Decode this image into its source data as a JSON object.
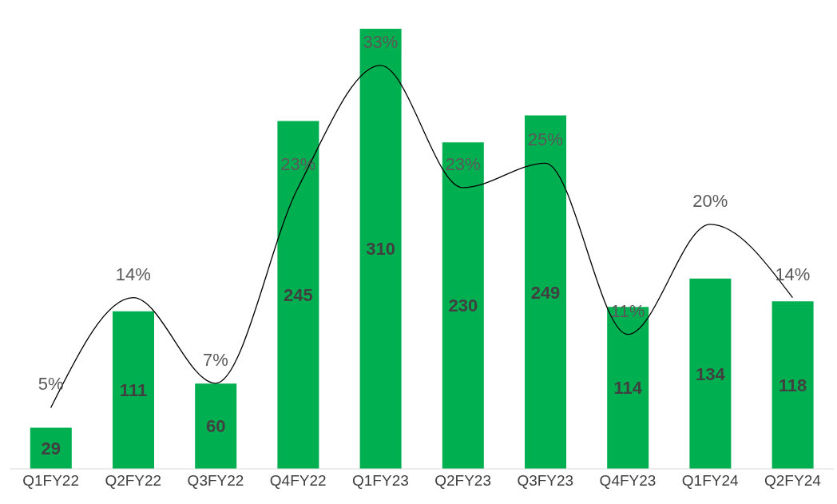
{
  "chart_data": {
    "type": "bar",
    "categories": [
      "Q1FY22",
      "Q2FY22",
      "Q3FY22",
      "Q4FY22",
      "Q1FY23",
      "Q2FY23",
      "Q3FY23",
      "Q4FY23",
      "Q1FY24",
      "Q2FY24"
    ],
    "series": [
      {
        "color": "#00b050",
        "values": [
          29,
          111,
          60,
          245,
          310,
          230,
          249,
          114,
          134,
          118
        ]
      },
      {
        "type": "line",
        "axis": "y2",
        "color": "#000000",
        "values": [
          5,
          14,
          7,
          23,
          33,
          23,
          25,
          11,
          20,
          14
        ],
        "value_labels": [
          "5%",
          "14%",
          "7%",
          "23%",
          "33%",
          "23%",
          "25%",
          "11%",
          "20%",
          "14%"
        ]
      }
    ],
    "ylim": [
      0,
      310
    ],
    "data_labels": true,
    "grid": false,
    "legend": false,
    "marker": "none",
    "line_style": "solid",
    "tick_labels": "x"
  }
}
